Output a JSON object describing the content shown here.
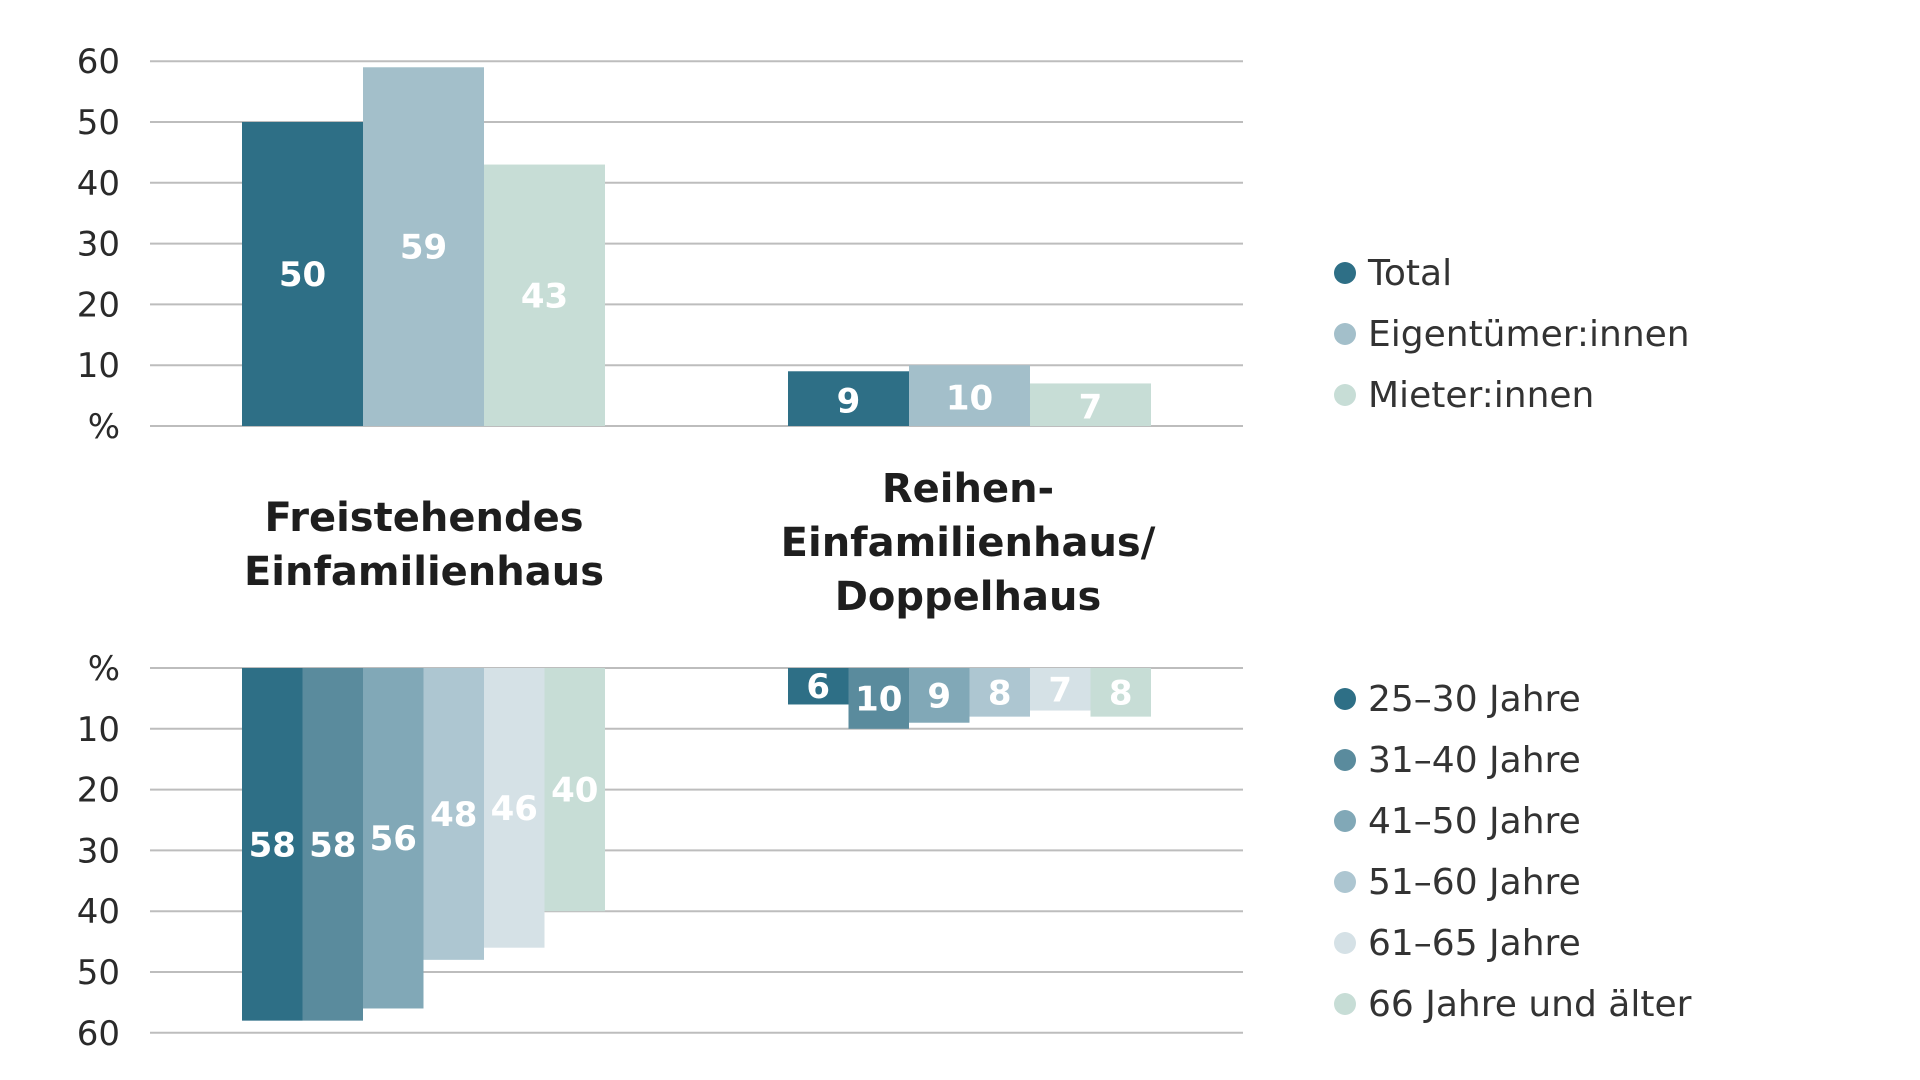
{
  "chart_data": [
    {
      "type": "bar",
      "unit": "%",
      "y_ticks": [
        "60",
        "50",
        "40",
        "30",
        "20",
        "10"
      ],
      "ylim": [
        0,
        60
      ],
      "categories": [
        "Freistehendes Einfamilienhaus",
        "Reihen-Einfamilienhaus/ Doppelhaus"
      ],
      "series": [
        {
          "name": "Total",
          "color": "#2e6f86",
          "values": [
            50,
            9
          ]
        },
        {
          "name": "Eigentümer:innen",
          "color": "#a3bfca",
          "values": [
            59,
            10
          ]
        },
        {
          "name": "Mieter:innen",
          "color": "#c7ddd6",
          "values": [
            43,
            7
          ]
        }
      ],
      "legend": "right"
    },
    {
      "type": "bar",
      "unit": "%",
      "orientation": "downward",
      "y_ticks": [
        "10",
        "20",
        "30",
        "40",
        "50",
        "60"
      ],
      "ylim": [
        0,
        60
      ],
      "categories": [
        "Freistehendes Einfamilienhaus",
        "Reihen-Einfamilienhaus/ Doppelhaus"
      ],
      "series": [
        {
          "name": "25–30 Jahre",
          "color": "#2e6f86",
          "values": [
            58,
            6
          ]
        },
        {
          "name": "31–40 Jahre",
          "color": "#5a8b9d",
          "values": [
            58,
            10
          ]
        },
        {
          "name": "41–50 Jahre",
          "color": "#81a8b7",
          "values": [
            56,
            9
          ]
        },
        {
          "name": "51–60 Jahre",
          "color": "#adc6d1",
          "values": [
            48,
            8
          ]
        },
        {
          "name": "61–65 Jahre",
          "color": "#d5e1e6",
          "values": [
            46,
            7
          ]
        },
        {
          "name": "66 Jahre und älter",
          "color": "#c7ddd6",
          "values": [
            40,
            8
          ]
        }
      ],
      "legend": "right"
    }
  ],
  "category_labels": [
    [
      "Freistehendes",
      "Einfamilienhaus"
    ],
    [
      "Reihen-",
      "Einfamilienhaus/",
      "Doppelhaus"
    ]
  ]
}
